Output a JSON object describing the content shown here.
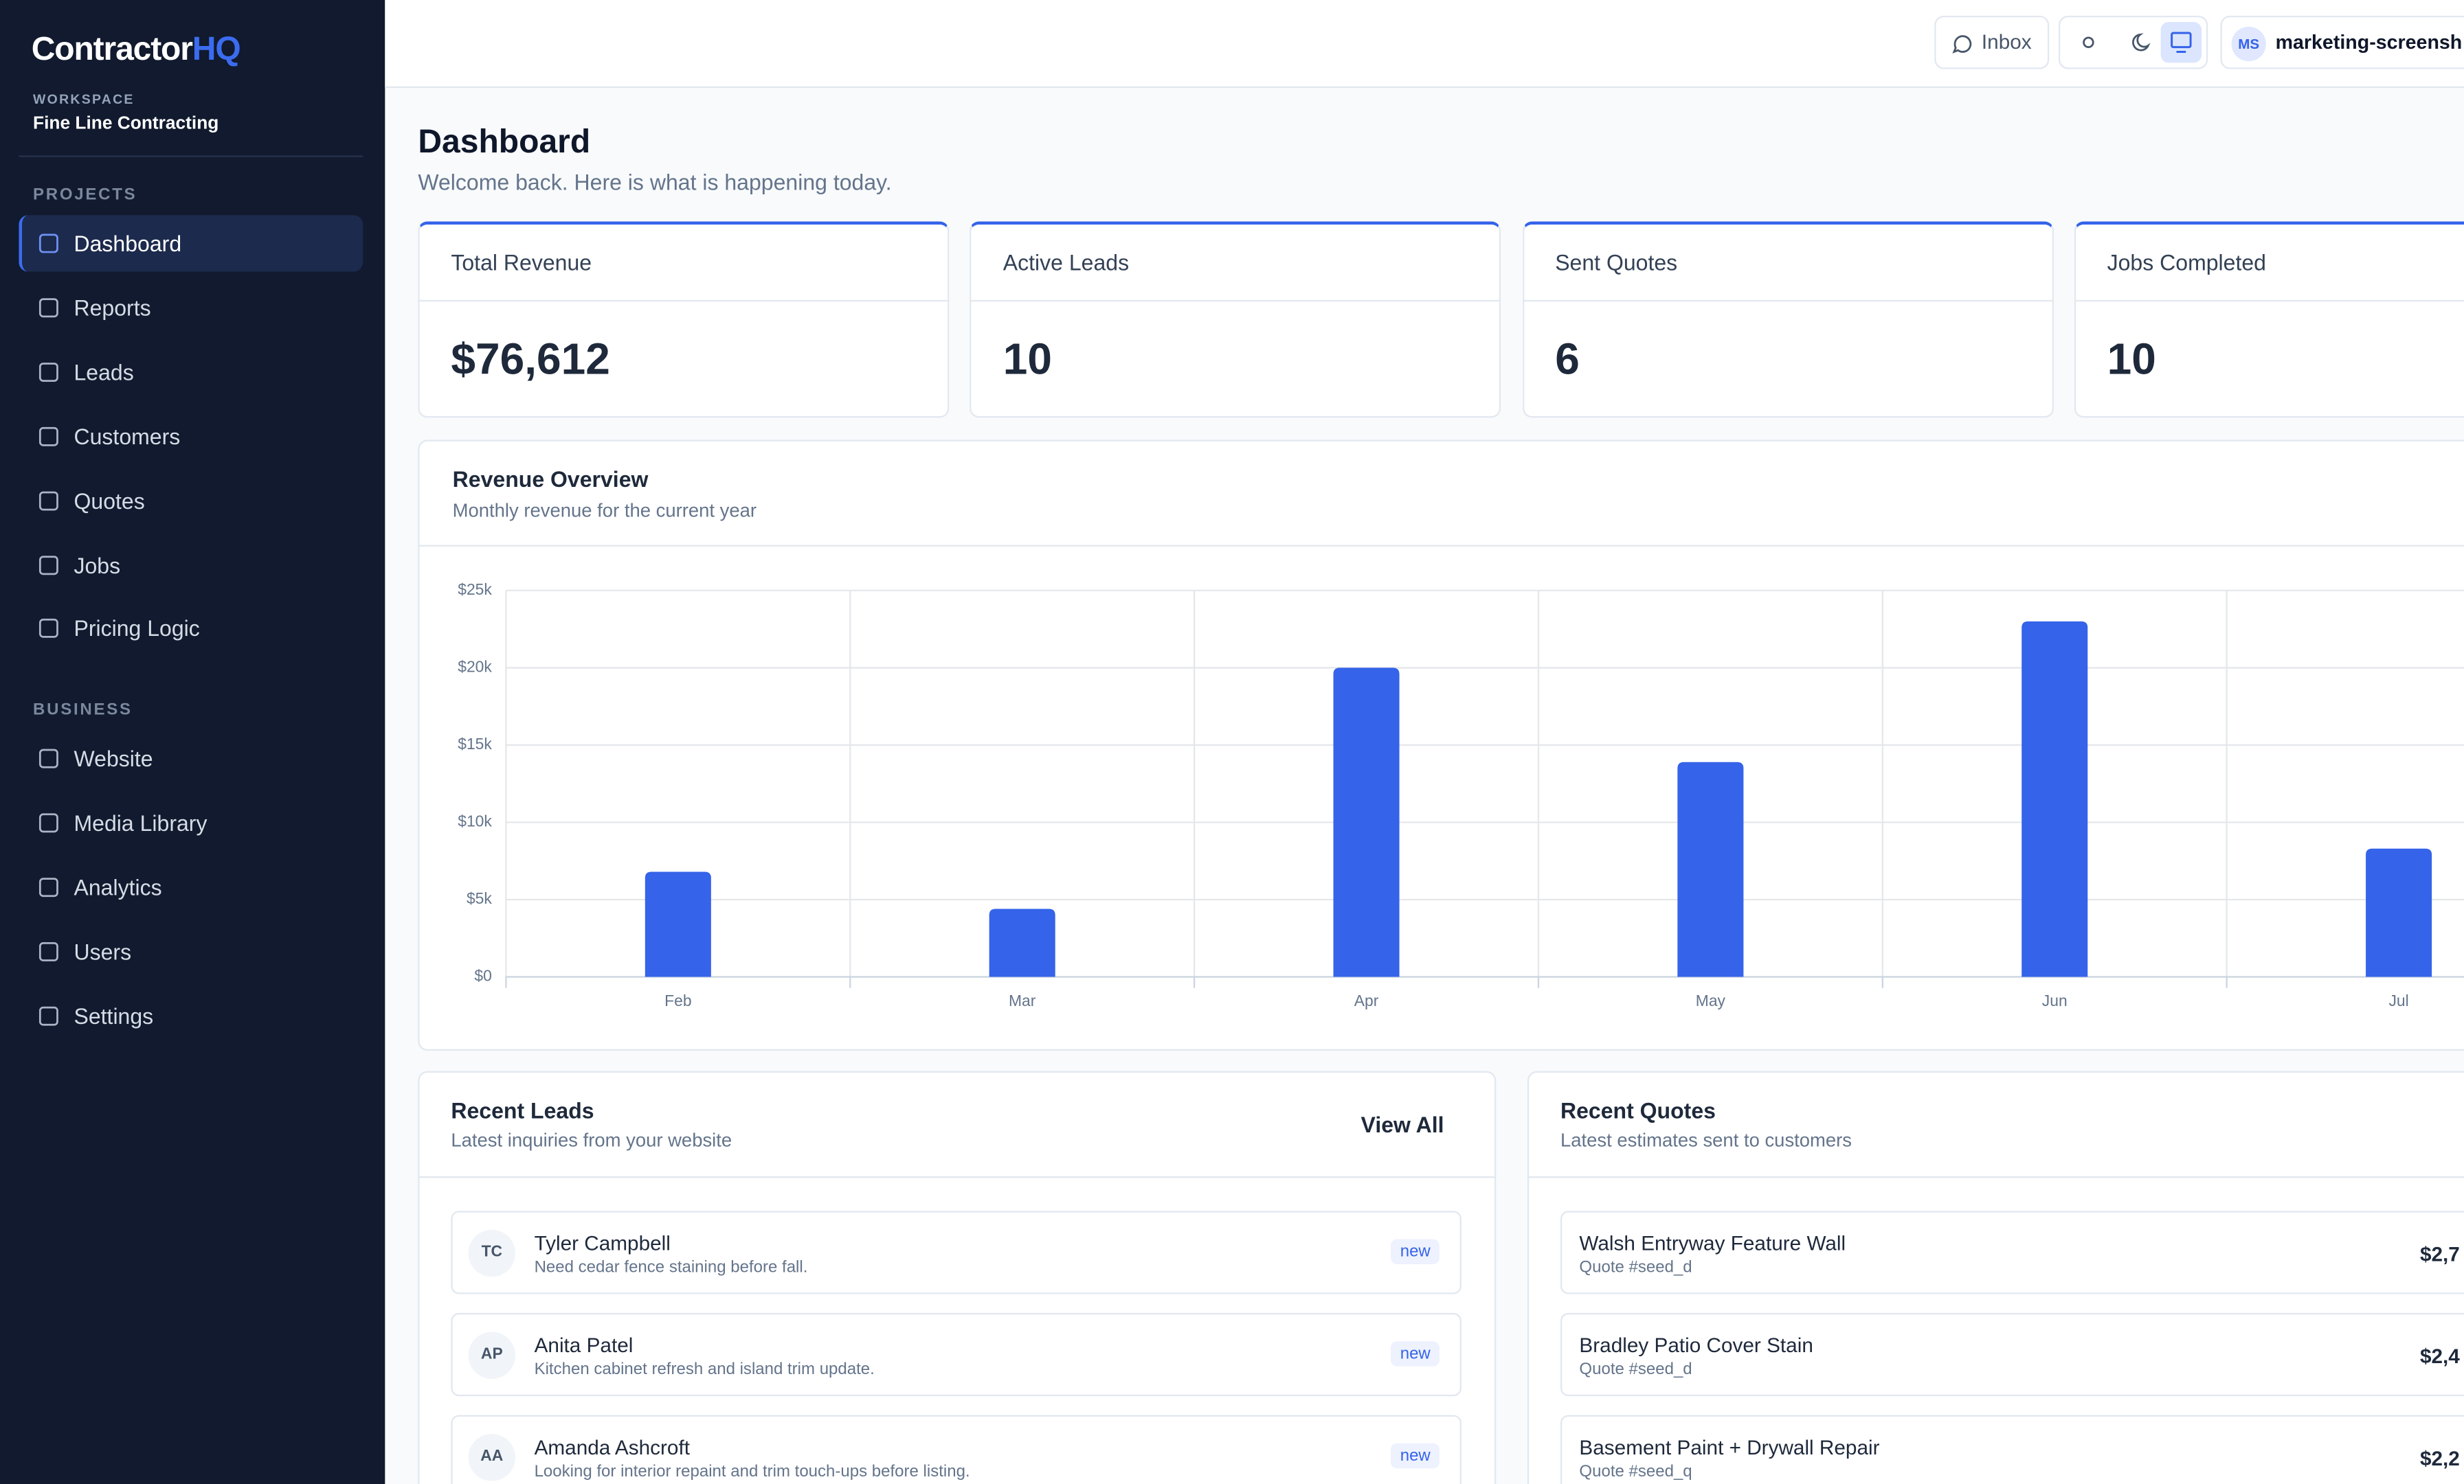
{
  "brand": {
    "name": "Contractor",
    "accent": "HQ"
  },
  "workspace": {
    "label": "WORKSPACE",
    "name": "Fine Line Contracting"
  },
  "nav": [
    {
      "heading": "PROJECTS",
      "items": [
        "Dashboard",
        "Reports",
        "Leads",
        "Customers",
        "Quotes",
        "Jobs",
        "Pricing Logic"
      ]
    },
    {
      "heading": "BUSINESS",
      "items": [
        "Website",
        "Media Library",
        "Analytics",
        "Users",
        "Settings"
      ]
    }
  ],
  "header": {
    "inbox": "Inbox",
    "user_initials": "MS",
    "user_name": "marketing-screensh"
  },
  "page": {
    "title": "Dashboard",
    "subtitle": "Welcome back. Here is what is happening today."
  },
  "stats": [
    {
      "label": "Total Revenue",
      "value": "$76,612"
    },
    {
      "label": "Active Leads",
      "value": 10
    },
    {
      "label": "Sent Quotes",
      "value": 6
    },
    {
      "label": "Jobs Completed",
      "value": 10
    }
  ],
  "chart_data": {
    "type": "bar",
    "title": "Revenue Overview",
    "subtitle": "Monthly revenue for the current year",
    "categories": [
      "Feb",
      "Mar",
      "Apr",
      "May",
      "Jun",
      "Jul"
    ],
    "values": [
      6800,
      4400,
      20000,
      13900,
      23000,
      8300
    ],
    "color": "#3563e9",
    "ylim": [
      0,
      25000
    ],
    "yticks": [
      {
        "value": 0,
        "label": "$0"
      },
      {
        "value": 5000,
        "label": "$5k"
      },
      {
        "value": 10000,
        "label": "$10k"
      },
      {
        "value": 15000,
        "label": "$15k"
      },
      {
        "value": 20000,
        "label": "$20k"
      },
      {
        "value": 25000,
        "label": "$25k"
      }
    ],
    "grid": true
  },
  "recent_leads": {
    "title": "Recent Leads",
    "subtitle": "Latest inquiries from your website",
    "action": "View All",
    "items": [
      {
        "initials": "TC",
        "name": "Tyler Campbell",
        "message": "Need cedar fence staining before fall.",
        "status": "new"
      },
      {
        "initials": "AP",
        "name": "Anita Patel",
        "message": "Kitchen cabinet refresh and island trim update.",
        "status": "new"
      },
      {
        "initials": "AA",
        "name": "Amanda Ashcroft",
        "message": "Looking for interior repaint and trim touch-ups before listing.",
        "status": "new"
      }
    ]
  },
  "recent_quotes": {
    "title": "Recent Quotes",
    "subtitle": "Latest estimates sent to customers",
    "items": [
      {
        "name": "Walsh Entryway Feature Wall",
        "quote": "Quote #seed_d",
        "amount": "$2,7"
      },
      {
        "name": "Bradley Patio Cover Stain",
        "quote": "Quote #seed_d",
        "amount": "$2,4"
      },
      {
        "name": "Basement Paint + Drywall Repair",
        "quote": "Quote #seed_q",
        "amount": "$2,2"
      }
    ]
  }
}
